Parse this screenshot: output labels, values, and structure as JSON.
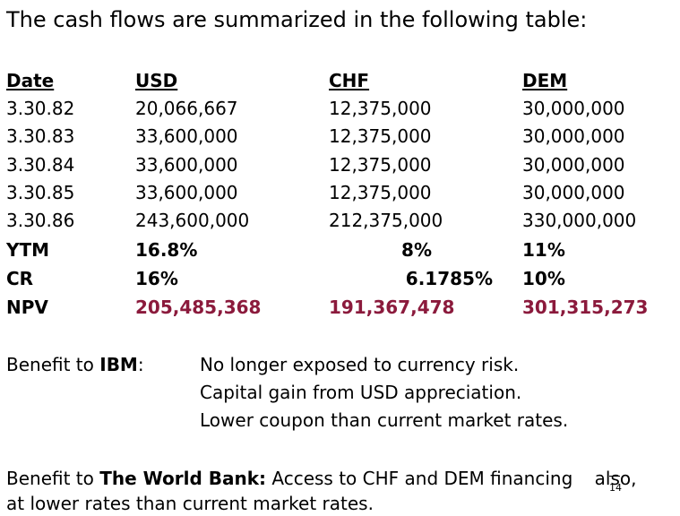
{
  "heading": "The cash flows are summarized in the following table:",
  "table": {
    "headers": [
      "Date",
      "USD",
      "CHF",
      "DEM"
    ],
    "rows": [
      [
        "3.30.82",
        "20,066,667",
        "12,375,000",
        "30,000,000"
      ],
      [
        "3.30.83",
        "33,600,000",
        "12,375,000",
        "30,000,000"
      ],
      [
        "3.30.84",
        "33,600,000",
        "12,375,000",
        "30,000,000"
      ],
      [
        "3.30.85",
        "33,600,000",
        "12,375,000",
        "30,000,000"
      ],
      [
        "3.30.86",
        "243,600,000",
        "212,375,000",
        "330,000,000"
      ]
    ],
    "ytm": [
      "YTM",
      "16.8%",
      "8%",
      "11%"
    ],
    "cr": [
      "CR",
      "16%",
      "6.1785%",
      "10%"
    ],
    "npv": [
      "NPV",
      "205,485,368",
      "191,367,478",
      "301,315,273"
    ]
  },
  "benefit_ibm": {
    "label_prefix": "Benefit to ",
    "label_bold": "IBM",
    "label_suffix": ":",
    "points": [
      "No longer exposed to currency risk.",
      "Capital gain from USD appreciation.",
      "Lower coupon than current market rates."
    ]
  },
  "benefit_wb": {
    "prefix": "Benefit to ",
    "bold": "The World Bank:",
    "line1_rest": " Access to CHF and DEM financing ",
    "line1_end": "also,",
    "line2": "at lower rates than current market rates."
  },
  "page_number": "14"
}
